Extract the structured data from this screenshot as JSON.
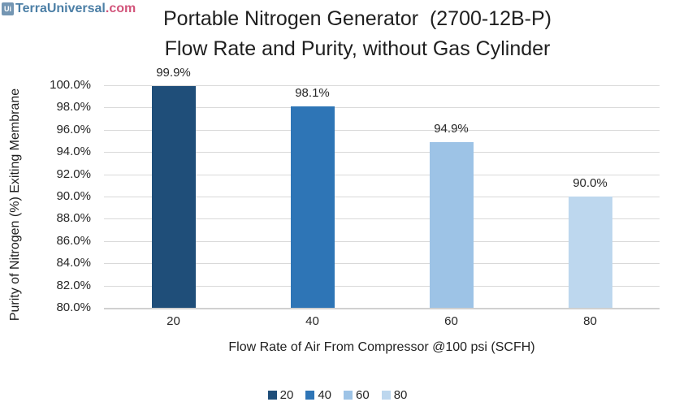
{
  "logo": {
    "icon_text": "Ui",
    "brand": "TerraUniversal",
    "tld": ".com"
  },
  "colors": {
    "bar_series": [
      "#1F4E79",
      "#2E75B6",
      "#9DC3E6",
      "#BDD7EE"
    ],
    "gridline": "#D9D9D9",
    "logo_blue": "#4C7FA6",
    "logo_pink": "#D2557B",
    "text": "#262626"
  },
  "chart_data": {
    "type": "bar",
    "title_line1": "Portable Nitrogen Generator  (2700-12B-P)",
    "title_line2": "Flow Rate and Purity, without Gas Cylinder",
    "categories": [
      "20",
      "40",
      "60",
      "80"
    ],
    "values": [
      99.9,
      98.1,
      94.9,
      90.0
    ],
    "data_labels": [
      "99.9%",
      "98.1%",
      "94.9%",
      "90.0%"
    ],
    "xlabel": "Flow Rate of Air From Compressor @100 psi (SCFH)",
    "ylabel": "Purity of Nitrogen (%) Exiting Membrane",
    "ylim": [
      80,
      100
    ],
    "ytick_step": 2,
    "ytick_labels": [
      "100.0%",
      "98.0%",
      "96.0%",
      "94.0%",
      "92.0%",
      "90.0%",
      "88.0%",
      "86.0%",
      "84.0%",
      "82.0%",
      "80.0%"
    ],
    "legend": [
      "20",
      "40",
      "60",
      "80"
    ],
    "legend_position": "bottom",
    "grid": true
  }
}
